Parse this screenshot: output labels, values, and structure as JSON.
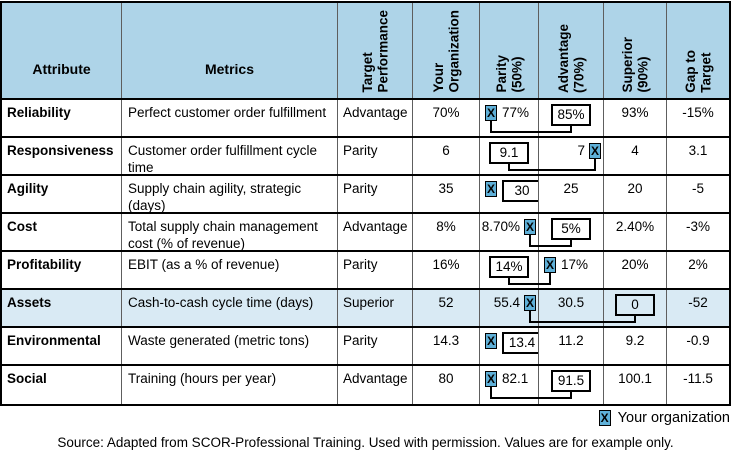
{
  "columns": [
    {
      "key": "attribute",
      "label": "Attribute",
      "rotated": false
    },
    {
      "key": "metric",
      "label": "Metrics",
      "rotated": false
    },
    {
      "key": "target",
      "label": "Target\nPerformance",
      "rotated": true
    },
    {
      "key": "your_org",
      "label": "Your\nOrganization",
      "rotated": true
    },
    {
      "key": "parity",
      "label": "Parity\n(50%)",
      "rotated": true
    },
    {
      "key": "advantage",
      "label": "Advantage\n(70%)",
      "rotated": true
    },
    {
      "key": "superior",
      "label": "Superior\n(90%)",
      "rotated": true
    },
    {
      "key": "gap",
      "label": "Gap to\nTarget",
      "rotated": true
    }
  ],
  "rows": [
    {
      "attribute": "Reliability",
      "metric": "Perfect customer order fulfillment",
      "target": "Advantage",
      "your_org": "70%",
      "parity": {
        "value": "77%",
        "marker": "before",
        "boxed": false
      },
      "advantage": {
        "value": "85%",
        "marker": "none",
        "boxed": true
      },
      "superior": {
        "value": "93%",
        "marker": "none",
        "boxed": false
      },
      "gap": "-15%",
      "shaded": false,
      "connect": true
    },
    {
      "attribute": "Responsiveness",
      "metric": "Customer order fulfillment cycle time",
      "target": "Parity",
      "your_org": "6",
      "parity": {
        "value": "9.1",
        "marker": "none",
        "boxed": true
      },
      "advantage": {
        "value": "7",
        "marker": "after",
        "boxed": false
      },
      "superior": {
        "value": "4",
        "marker": "none",
        "boxed": false
      },
      "gap": "3.1",
      "shaded": false,
      "connect": true
    },
    {
      "attribute": "Agility",
      "metric": "Supply chain agility, strategic (days)",
      "target": "Parity",
      "your_org": "35",
      "parity": {
        "value": "30",
        "marker": "before",
        "boxed": true
      },
      "advantage": {
        "value": "25",
        "marker": "none",
        "boxed": false
      },
      "superior": {
        "value": "20",
        "marker": "none",
        "boxed": false
      },
      "gap": "-5",
      "shaded": false,
      "connect": false
    },
    {
      "attribute": "Cost",
      "metric": "Total supply chain management cost (% of revenue)",
      "target": "Advantage",
      "your_org": "8%",
      "parity": {
        "value": "8.70%",
        "marker": "after",
        "boxed": false
      },
      "advantage": {
        "value": "5%",
        "marker": "none",
        "boxed": true
      },
      "superior": {
        "value": "2.40%",
        "marker": "none",
        "boxed": false
      },
      "gap": "-3%",
      "shaded": false,
      "connect": true
    },
    {
      "attribute": "Profitability",
      "metric": "EBIT (as a % of revenue)",
      "target": "Parity",
      "your_org": "16%",
      "parity": {
        "value": "14%",
        "marker": "none",
        "boxed": true
      },
      "advantage": {
        "value": "17%",
        "marker": "before",
        "boxed": false
      },
      "superior": {
        "value": "20%",
        "marker": "none",
        "boxed": false
      },
      "gap": "2%",
      "shaded": false,
      "connect": true
    },
    {
      "attribute": "Assets",
      "metric": "Cash-to-cash cycle time (days)",
      "target": "Superior",
      "your_org": "52",
      "parity": {
        "value": "55.4",
        "marker": "after",
        "boxed": false
      },
      "advantage": {
        "value": "30.5",
        "marker": "none",
        "boxed": false
      },
      "superior": {
        "value": "0",
        "marker": "none",
        "boxed": true
      },
      "gap": "-52",
      "shaded": true,
      "connect": true
    },
    {
      "attribute": "Environmental",
      "metric": "Waste generated (metric tons)",
      "target": "Parity",
      "your_org": "14.3",
      "parity": {
        "value": "13.4",
        "marker": "before",
        "boxed": true
      },
      "advantage": {
        "value": "11.2",
        "marker": "none",
        "boxed": false
      },
      "superior": {
        "value": "9.2",
        "marker": "none",
        "boxed": false
      },
      "gap": "-0.9",
      "shaded": false,
      "connect": false
    },
    {
      "attribute": "Social",
      "metric": "Training (hours per year)",
      "target": "Advantage",
      "your_org": "80",
      "parity": {
        "value": "82.1",
        "marker": "before",
        "boxed": false
      },
      "advantage": {
        "value": "91.5",
        "marker": "none",
        "boxed": true
      },
      "superior": {
        "value": "100.1",
        "marker": "none",
        "boxed": false
      },
      "gap": "-11.5",
      "shaded": false,
      "connect": true
    }
  ],
  "legend": {
    "marker_glyph": "X",
    "label": "Your organization"
  },
  "source_note": "Source: Adapted from SCOR-Professional Training. Used with permission. Values are for example only.",
  "colors": {
    "header_bg": "#aed4e8",
    "shaded_row_bg": "#d9eaf4",
    "marker_bg": "#5fb0d8",
    "grid_line": "#5e5e5e",
    "border": "#000000"
  }
}
